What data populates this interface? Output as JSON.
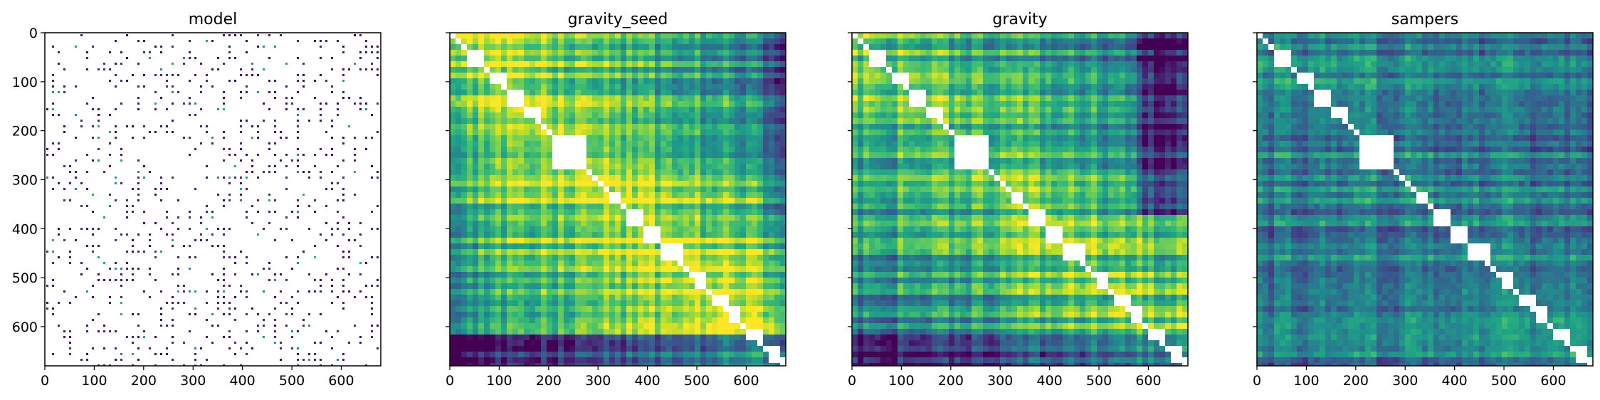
{
  "chart_data": [
    {
      "type": "heatmap",
      "title": "model",
      "xlabel": "",
      "ylabel": "",
      "xlim": [
        0,
        680
      ],
      "ylim": [
        680,
        0
      ],
      "xticks": [
        0,
        100,
        200,
        300,
        400,
        500,
        600
      ],
      "yticks": [
        0,
        100,
        200,
        300,
        400,
        500,
        600
      ],
      "show_ytick_labels": true,
      "colormap": "viridis",
      "appearance": "sparse"
    },
    {
      "type": "heatmap",
      "title": "gravity_seed",
      "xlabel": "",
      "ylabel": "",
      "xlim": [
        0,
        680
      ],
      "ylim": [
        680,
        0
      ],
      "xticks": [
        0,
        100,
        200,
        300,
        400,
        500,
        600
      ],
      "yticks": [
        0,
        100,
        200,
        300,
        400,
        500,
        600
      ],
      "show_ytick_labels": false,
      "colormap": "viridis",
      "appearance": "dense-yellow"
    },
    {
      "type": "heatmap",
      "title": "gravity",
      "xlabel": "",
      "ylabel": "",
      "xlim": [
        0,
        680
      ],
      "ylim": [
        680,
        0
      ],
      "xticks": [
        0,
        100,
        200,
        300,
        400,
        500,
        600
      ],
      "yticks": [
        0,
        100,
        200,
        300,
        400,
        500,
        600
      ],
      "show_ytick_labels": false,
      "colormap": "viridis",
      "appearance": "dense-green-yellow"
    },
    {
      "type": "heatmap",
      "title": "sampers",
      "xlabel": "",
      "ylabel": "",
      "xlim": [
        0,
        680
      ],
      "ylim": [
        680,
        0
      ],
      "xticks": [
        0,
        100,
        200,
        300,
        400,
        500,
        600
      ],
      "yticks": [
        0,
        100,
        200,
        300,
        400,
        500,
        600
      ],
      "show_ytick_labels": false,
      "colormap": "viridis",
      "appearance": "dense-teal"
    }
  ]
}
